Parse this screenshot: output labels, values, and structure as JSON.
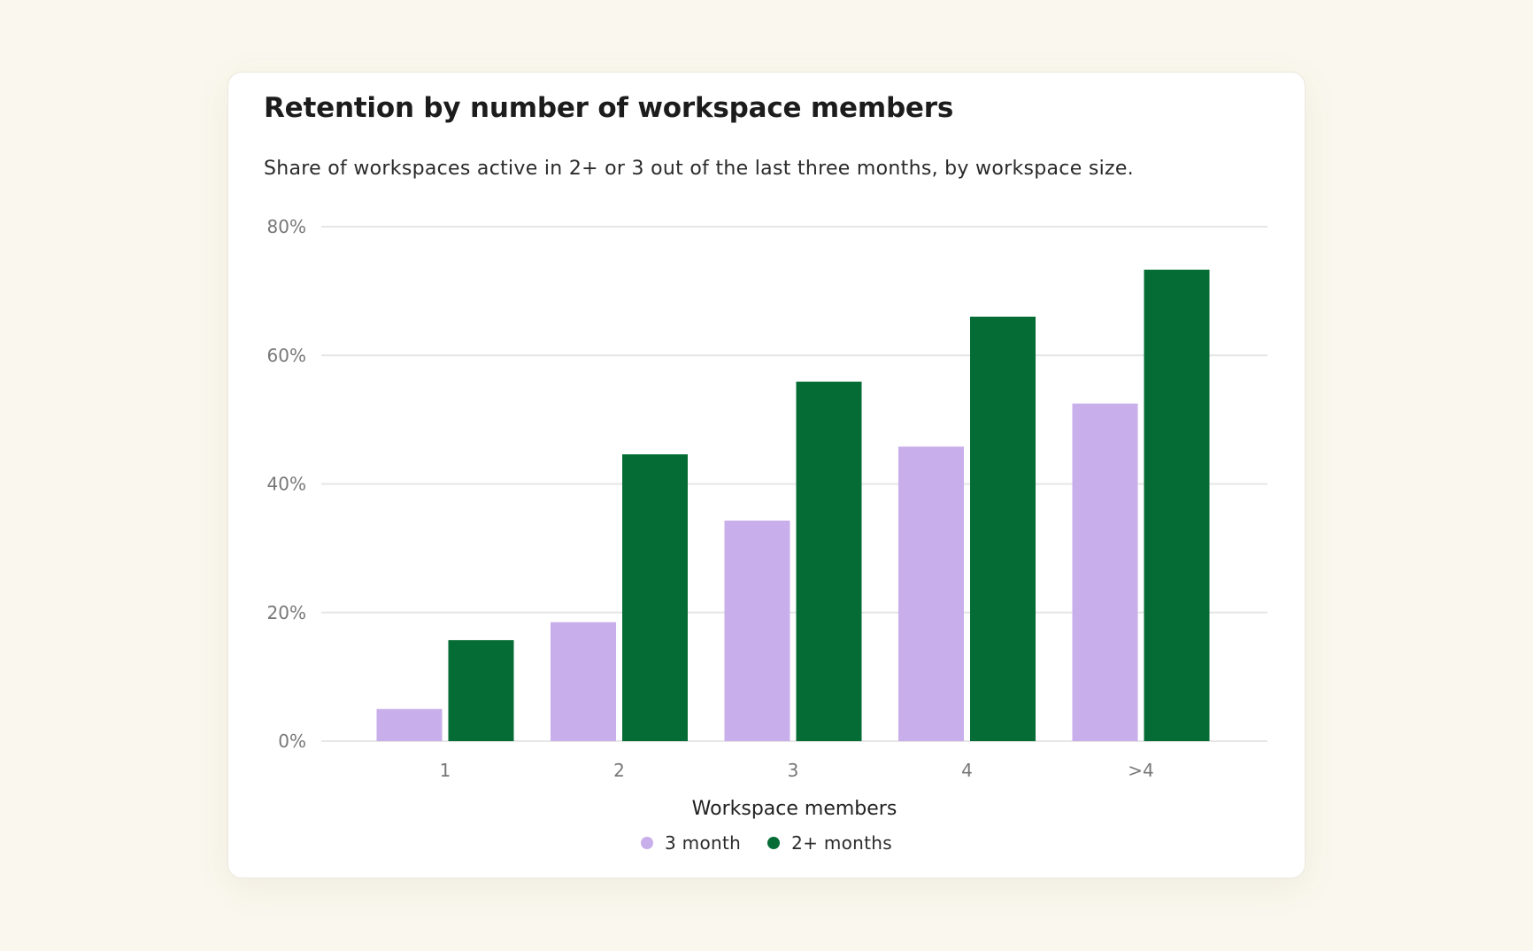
{
  "page": {
    "background_color": "#faf7ee"
  },
  "chart_data": {
    "type": "bar",
    "title": "Retention by number of workspace members",
    "subtitle": "Share of workspaces active in 2+ or 3 out of the last three months, by workspace size.",
    "xlabel": "Workspace members",
    "ylabel": "",
    "categories": [
      "1",
      "2",
      "3",
      "4",
      ">4"
    ],
    "series": [
      {
        "name": "3 month",
        "color": "#c8aeea",
        "values": [
          5,
          18.5,
          34.3,
          45.8,
          52.5
        ]
      },
      {
        "name": "2+ months",
        "color": "#046c34",
        "values": [
          15.7,
          44.6,
          55.9,
          66,
          73.3
        ]
      }
    ],
    "ylim": [
      0,
      80
    ],
    "yticks": [
      0,
      20,
      40,
      60,
      80
    ],
    "ytick_labels": [
      "0%",
      "20%",
      "40%",
      "60%",
      "80%"
    ],
    "grid": true,
    "legend_position": "bottom-center"
  }
}
